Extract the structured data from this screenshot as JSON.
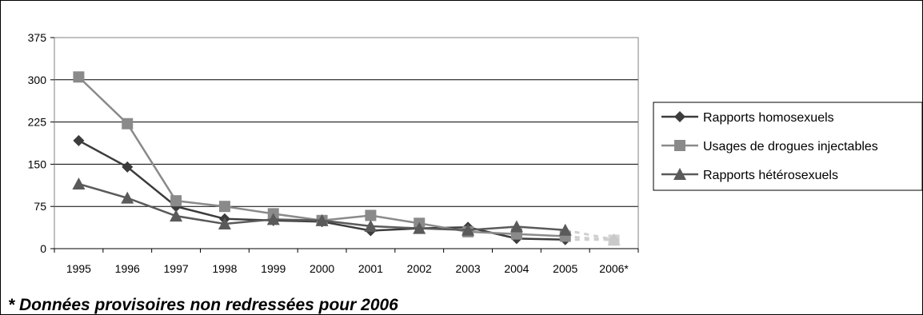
{
  "chart_data": {
    "type": "line",
    "categories": [
      "1995",
      "1996",
      "1997",
      "1998",
      "1999",
      "2000",
      "2001",
      "2002",
      "2003",
      "2004",
      "2005",
      "2006*"
    ],
    "ylim": [
      0,
      375
    ],
    "yticks": [
      0,
      75,
      150,
      225,
      300,
      375
    ],
    "grid": true,
    "legend_position": "right",
    "series": [
      {
        "name": "Rapports homosexuels",
        "marker": "diamond",
        "color": "#3c3c3c",
        "values": [
          192,
          145,
          75,
          53,
          50,
          48,
          32,
          36,
          38,
          18,
          16,
          16
        ]
      },
      {
        "name": "Usages de drogues injectables",
        "marker": "square",
        "color": "#8a8a8a",
        "values": [
          305,
          222,
          85,
          75,
          62,
          50,
          59,
          45,
          30,
          26,
          22,
          15
        ]
      },
      {
        "name": "Rapports hétérosexuels",
        "marker": "triangle",
        "color": "#5a5a5a",
        "values": [
          115,
          90,
          58,
          44,
          52,
          50,
          40,
          36,
          33,
          39,
          33,
          16
        ]
      }
    ],
    "provisional_last_point": true,
    "footnote": "* Données provisoires non redressées pour 2006"
  }
}
